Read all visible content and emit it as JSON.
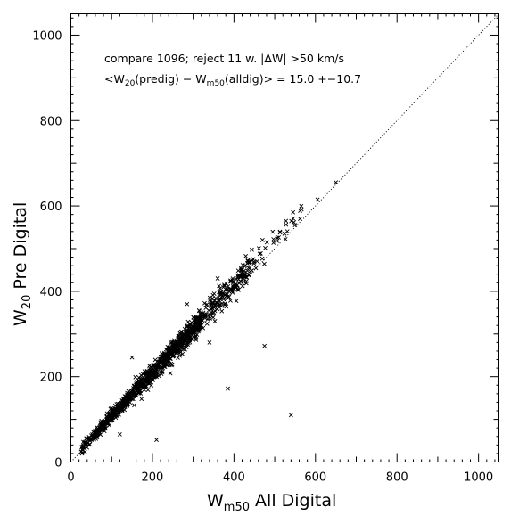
{
  "chart_data": {
    "type": "scatter",
    "title": "",
    "xlabel": {
      "main": "W",
      "sub": "m50",
      "rest": " All Digital"
    },
    "ylabel": {
      "main": "W",
      "sub": "20",
      "rest": " Pre Digital"
    },
    "xlim": [
      0,
      1050
    ],
    "ylim": [
      0,
      1050
    ],
    "xticks": [
      "0",
      "200",
      "400",
      "600",
      "800",
      "1000"
    ],
    "yticks": [
      "0",
      "200",
      "400",
      "600",
      "800",
      "1000"
    ],
    "grid": false,
    "marker": "x",
    "marker_color": "#000000",
    "reference_line": {
      "style": "dotted",
      "slope": 1,
      "intercept": 0
    },
    "annotations": {
      "line1": "compare 1096; reject 11 w. |ΔW| >50 km/s",
      "line2_parts": [
        {
          "t": "<W",
          "sub": false
        },
        {
          "t": "20",
          "sub": true
        },
        {
          "t": "(predig) − W",
          "sub": false
        },
        {
          "t": "m50",
          "sub": true
        },
        {
          "t": "(alldig)> = 15.0 +−10.7",
          "sub": false
        }
      ]
    },
    "outliers": [
      {
        "x": 540,
        "y": 110
      },
      {
        "x": 385,
        "y": 172
      },
      {
        "x": 475,
        "y": 272
      },
      {
        "x": 210,
        "y": 52
      },
      {
        "x": 120,
        "y": 65
      },
      {
        "x": 340,
        "y": 280
      },
      {
        "x": 550,
        "y": 555
      },
      {
        "x": 605,
        "y": 615
      },
      {
        "x": 650,
        "y": 655
      },
      {
        "x": 545,
        "y": 585
      },
      {
        "x": 470,
        "y": 520
      },
      {
        "x": 360,
        "y": 430
      },
      {
        "x": 285,
        "y": 370
      },
      {
        "x": 150,
        "y": 245
      }
    ],
    "cluster": {
      "description": "dense band of ~1080 points along y = x + 15",
      "x_range": [
        25,
        570
      ],
      "approx_count": 1080,
      "mean_offset": 15.0,
      "scatter_sd": 10.7
    }
  }
}
